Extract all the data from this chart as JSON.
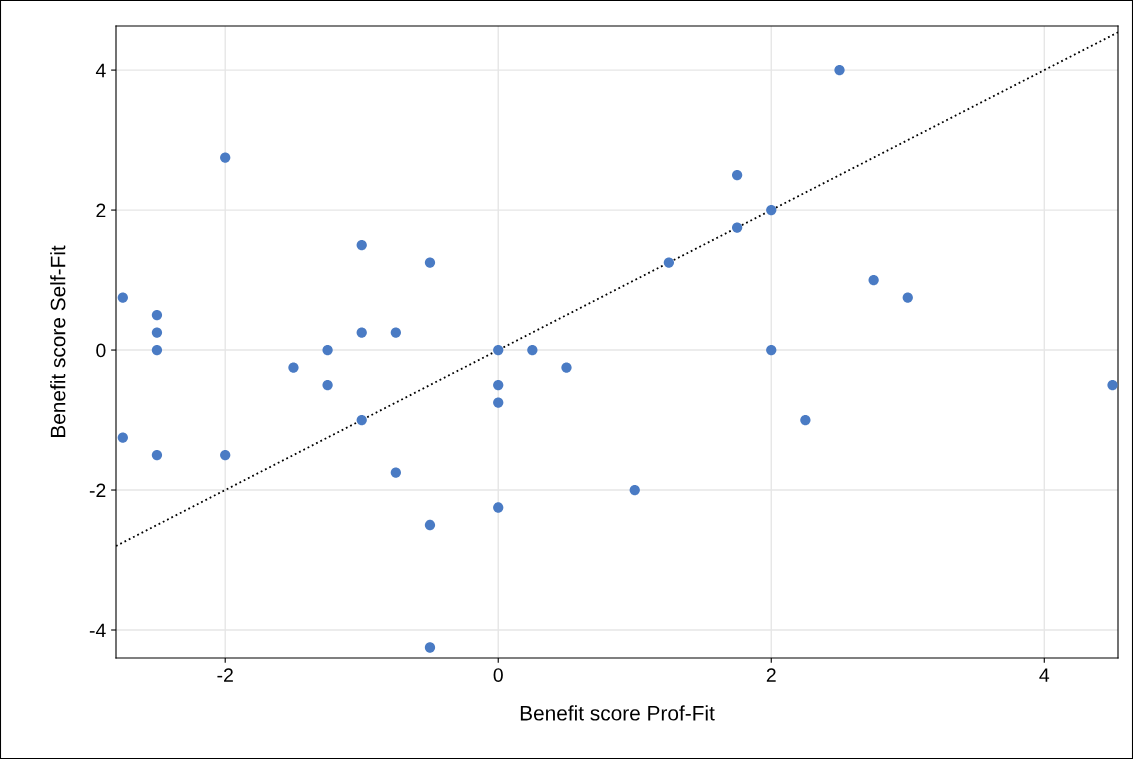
{
  "chart_data": {
    "type": "scatter",
    "xlabel": "Benefit score Prof-Fit",
    "ylabel": "Benefit score Self-Fit",
    "xlim": [
      -2.8,
      4.54
    ],
    "ylim": [
      -4.4,
      4.63
    ],
    "xticks": [
      -2,
      0,
      2,
      4
    ],
    "yticks": [
      -4,
      -2,
      0,
      2,
      4
    ],
    "grid": true,
    "series": [
      {
        "color": "#4a7bc4",
        "marker": "circle",
        "x": [
          -2.75,
          -2.75,
          -2.5,
          -2.5,
          -2.5,
          -2.5,
          -2,
          -2,
          -1.5,
          -1.25,
          -1.25,
          -1,
          -1,
          -1,
          -0.75,
          -0.75,
          -0.5,
          -0.5,
          -0.5,
          0,
          0,
          0,
          0,
          0.25,
          0.5,
          1,
          1.25,
          1.75,
          1.75,
          2,
          2,
          2.25,
          2.5,
          2.75,
          3,
          4.5
        ],
        "values": [
          0.75,
          -1.25,
          0.5,
          0.25,
          0,
          -1.5,
          2.75,
          -1.5,
          -0.25,
          0,
          -0.5,
          1.5,
          0.25,
          -1,
          0.25,
          -1.75,
          1.25,
          -2.5,
          -4.25,
          0,
          -0.5,
          -0.75,
          -2.25,
          0,
          -0.25,
          -2,
          1.25,
          2.5,
          1.75,
          2,
          0,
          -1,
          4,
          1,
          0.75,
          -0.5
        ]
      },
      {
        "type": "line",
        "color": "#000000",
        "line_style": "dotted",
        "x": [
          -2.8,
          4.54
        ],
        "values": [
          -2.8,
          4.54
        ]
      }
    ]
  }
}
